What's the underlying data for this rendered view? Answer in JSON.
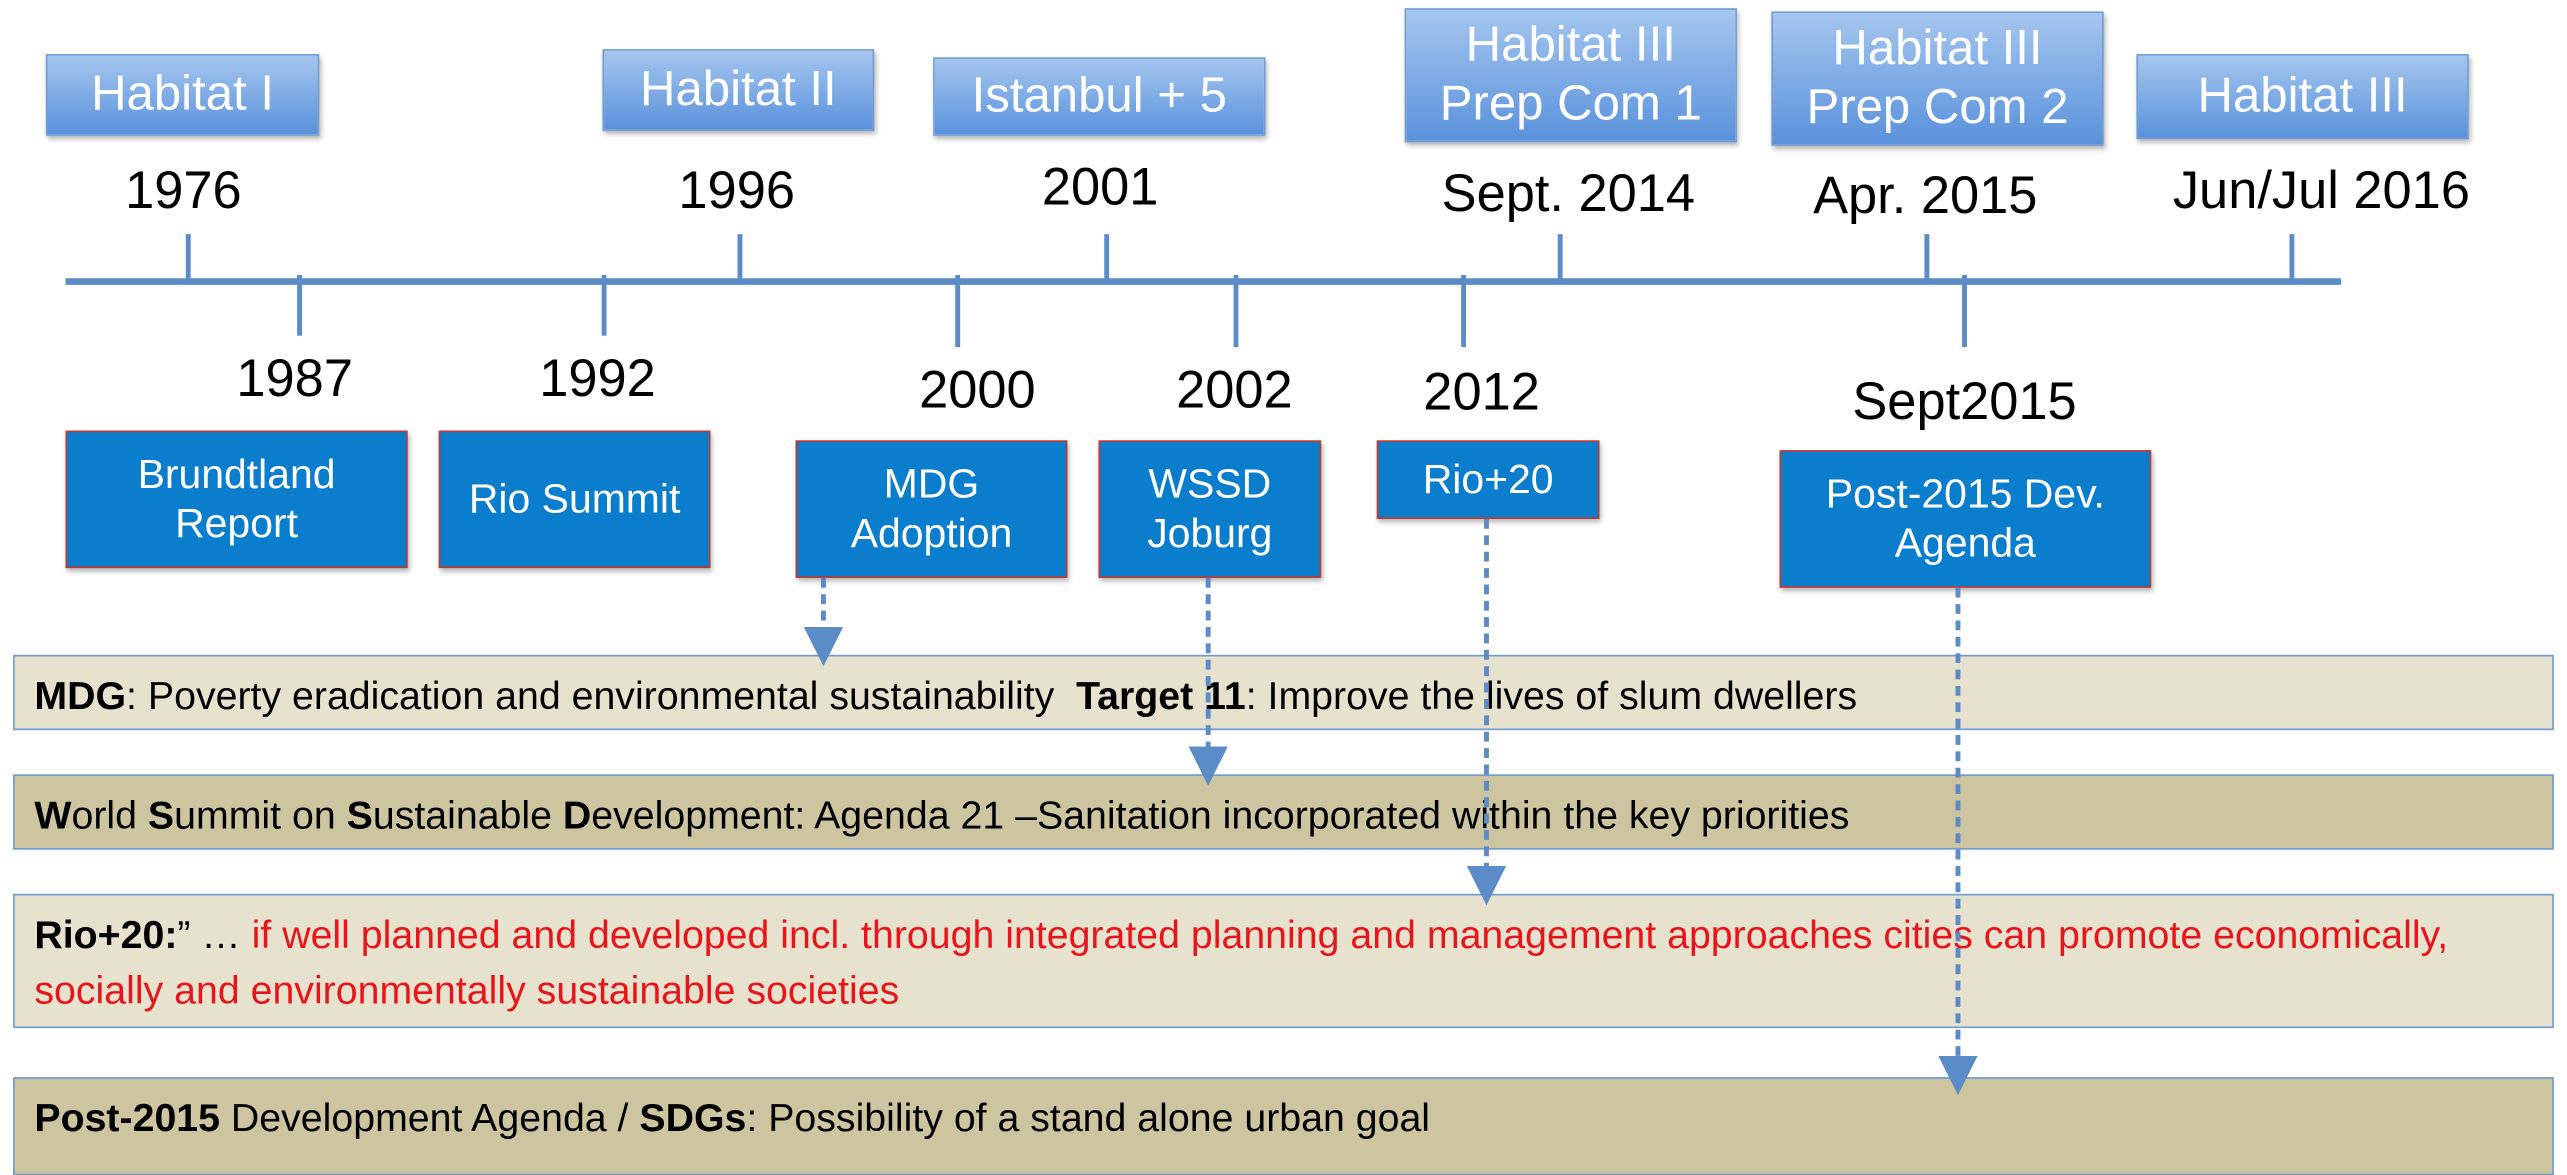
{
  "top_events": [
    {
      "label": "Habitat I",
      "date": "1976"
    },
    {
      "label": "Habitat II",
      "date": "1996"
    },
    {
      "label": "Istanbul + 5",
      "date": "2001"
    },
    {
      "label": "Habitat III\nPrep Com 1",
      "date": "Sept. 2014"
    },
    {
      "label": "Habitat III\nPrep Com 2",
      "date": "Apr. 2015"
    },
    {
      "label": "Habitat III",
      "date": "Jun/Jul 2016"
    }
  ],
  "bottom_events": [
    {
      "label": "Brundtland\nReport",
      "date": "1987"
    },
    {
      "label": "Rio Summit",
      "date": "1992"
    },
    {
      "label": "MDG\nAdoption",
      "date": "2000"
    },
    {
      "label": "WSSD\nJoburg",
      "date": "2002"
    },
    {
      "label": "Rio+20",
      "date": "2012"
    },
    {
      "label": "Post-2015 Dev.\nAgenda",
      "date": "Sept2015"
    }
  ],
  "notes": [
    {
      "background": "#e7e2cd",
      "segments": [
        {
          "text": "MDG",
          "bold": true
        },
        {
          "text": ": Poverty eradication and environmental sustainability  "
        },
        {
          "text": "Target 11",
          "bold": true
        },
        {
          "text": ": Improve the lives of slum dwellers"
        }
      ]
    },
    {
      "background": "#cdc59f",
      "segments": [
        {
          "text": "W",
          "bold": true
        },
        {
          "text": "orld "
        },
        {
          "text": "S",
          "bold": true
        },
        {
          "text": "ummit on "
        },
        {
          "text": "S",
          "bold": true
        },
        {
          "text": "ustainable "
        },
        {
          "text": "D",
          "bold": true
        },
        {
          "text": "evelopment: Agenda 21 –Sanitation incorporated within the key priorities"
        }
      ]
    },
    {
      "background": "#e7e2cd",
      "segments": [
        {
          "text": "Rio+20:",
          "bold": true
        },
        {
          "text": "” … "
        },
        {
          "text": "if well planned and developed incl. through integrated planning and management approaches cities can promote economically, socially and environmentally sustainable societies",
          "color": "#e8141b"
        }
      ]
    },
    {
      "background": "#cdc59f",
      "segments": [
        {
          "text": "Post-2015",
          "bold": true
        },
        {
          "text": " Development Agenda / "
        },
        {
          "text": "SDGs",
          "bold": true
        },
        {
          "text": ": Possibility of a stand alone urban goal"
        }
      ]
    }
  ]
}
